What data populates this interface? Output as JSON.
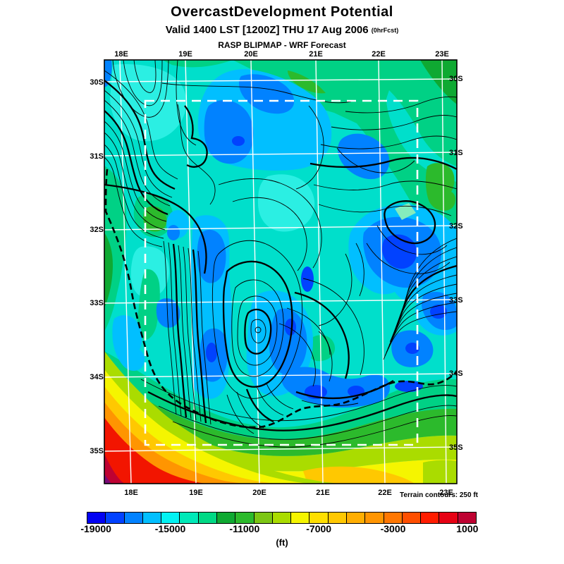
{
  "header": {
    "title": "OvercastDevelopment Potential",
    "valid_line": "Valid 1400 LST [1200Z] THU 17 Aug 2006",
    "fcst_tag": "(0hrFcst)",
    "model_line": "RASP BLIPMAP - WRF Forecast"
  },
  "map": {
    "top_labels": [
      "18E",
      "19E",
      "20E",
      "21E",
      "22E",
      "23E"
    ],
    "bottom_labels": [
      "18E",
      "19E",
      "20E",
      "21E",
      "22E",
      "23E"
    ],
    "left_labels": [
      "30S",
      "31S",
      "32S",
      "33S",
      "34S",
      "35S"
    ],
    "right_labels": [
      "30S",
      "31S",
      "32S",
      "33S",
      "34S",
      "35S"
    ],
    "footnote": "Terrain contours: 250 ft"
  },
  "colorbar": {
    "values": [
      -19000,
      -15000,
      -11000,
      -7000,
      -3000,
      1000
    ],
    "label_indices": [
      0,
      4,
      8,
      12,
      16,
      20
    ],
    "unit": "(ft)",
    "colors": [
      "#0202F2",
      "#0142FF",
      "#0182FF",
      "#01BFFF",
      "#02F2F2",
      "#00E9B8",
      "#00D985",
      "#0FA932",
      "#2CBA2C",
      "#7CC614",
      "#AADC00",
      "#F5F500",
      "#FFDF00",
      "#FFC801",
      "#FFAE01",
      "#FF9501",
      "#FF7701",
      "#FF4F00",
      "#FF1D00",
      "#E60114",
      "#BE0232"
    ]
  },
  "palette": {
    "base": "#00DFCB",
    "cyan": "#2BEFE3",
    "spring": "#00D185",
    "green": "#2CBA2C",
    "dkgreen": "#0FA932",
    "ltgreen": "#85ECBC",
    "sky": "#01BFFF",
    "blue": "#0182FF",
    "deep": "#0142FF",
    "yg": "#AADC00",
    "yellow": "#F5F500",
    "gold": "#FFC801",
    "orange": "#FF9501",
    "red": "#F21500",
    "crimson": "#BE0232",
    "purple": "#7A0A78"
  }
}
